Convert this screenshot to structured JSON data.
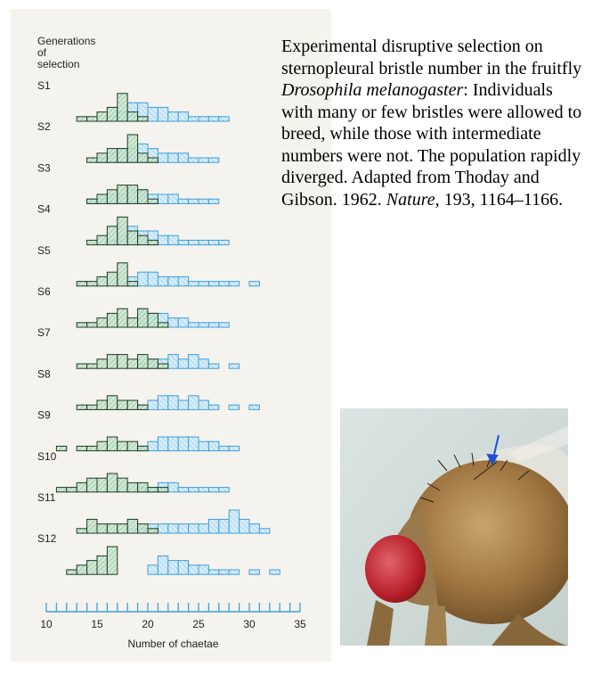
{
  "caption": {
    "part1": "Experimental disruptive selection on sternopleural bristle number in the fruitfly ",
    "species": "Drosophila melanogaster",
    "part2": ": Individuals with many or few bristles were allowed to breed, while those with intermediate numbers were not. The population rapidly diverged. Adapted from Thoday and Gibson. 1962. ",
    "journal": "Nature",
    "part3": ", 193, 1164–1166."
  },
  "chart_data": {
    "type": "histogram",
    "row_heading": [
      "Generations",
      "of",
      "selection"
    ],
    "xlabel": "Number of chaetae",
    "xlim": [
      10,
      35
    ],
    "xticks": [
      10,
      15,
      20,
      25,
      30,
      35
    ],
    "colors": {
      "low_line": "#1f3a26",
      "low_fill": "#c9e6cf",
      "high_line": "#3f9fd8",
      "high_fill": "#d7edf8",
      "axis": "#3f9fd8"
    },
    "series_note_low": "green hatched = low line",
    "rows": [
      {
        "label": "S1",
        "low": [
          [
            13,
            1
          ],
          [
            14,
            1
          ],
          [
            15,
            2
          ],
          [
            16,
            3
          ],
          [
            17,
            6
          ],
          [
            18,
            2
          ],
          [
            19,
            1
          ]
        ],
        "high": [
          [
            16,
            1
          ],
          [
            17,
            2
          ],
          [
            18,
            4
          ],
          [
            19,
            4
          ],
          [
            20,
            3
          ],
          [
            21,
            3
          ],
          [
            22,
            2
          ],
          [
            23,
            2
          ],
          [
            24,
            1
          ],
          [
            25,
            1
          ],
          [
            26,
            1
          ],
          [
            27,
            1
          ]
        ]
      },
      {
        "label": "S2",
        "low": [
          [
            14,
            1
          ],
          [
            15,
            2
          ],
          [
            16,
            3
          ],
          [
            17,
            3
          ],
          [
            18,
            6
          ],
          [
            19,
            2
          ],
          [
            20,
            1
          ]
        ],
        "high": [
          [
            15,
            1
          ],
          [
            16,
            2
          ],
          [
            17,
            3
          ],
          [
            18,
            3
          ],
          [
            19,
            4
          ],
          [
            20,
            3
          ],
          [
            21,
            2
          ],
          [
            22,
            2
          ],
          [
            23,
            2
          ],
          [
            24,
            1
          ],
          [
            25,
            1
          ],
          [
            26,
            1
          ]
        ]
      },
      {
        "label": "S3",
        "low": [
          [
            14,
            1
          ],
          [
            15,
            2
          ],
          [
            16,
            3
          ],
          [
            17,
            4
          ],
          [
            18,
            4
          ],
          [
            19,
            3
          ],
          [
            20,
            1
          ]
        ],
        "high": [
          [
            14,
            1
          ],
          [
            15,
            1
          ],
          [
            16,
            2
          ],
          [
            17,
            2
          ],
          [
            18,
            3
          ],
          [
            19,
            3
          ],
          [
            20,
            2
          ],
          [
            21,
            2
          ],
          [
            22,
            2
          ],
          [
            23,
            1
          ],
          [
            24,
            1
          ],
          [
            25,
            1
          ],
          [
            26,
            1
          ]
        ]
      },
      {
        "label": "S4",
        "low": [
          [
            14,
            1
          ],
          [
            15,
            2
          ],
          [
            16,
            4
          ],
          [
            17,
            6
          ],
          [
            18,
            3
          ],
          [
            19,
            2
          ],
          [
            20,
            1
          ]
        ],
        "high": [
          [
            16,
            1
          ],
          [
            17,
            2
          ],
          [
            18,
            4
          ],
          [
            19,
            3
          ],
          [
            20,
            3
          ],
          [
            21,
            2
          ],
          [
            22,
            2
          ],
          [
            23,
            1
          ],
          [
            24,
            1
          ],
          [
            25,
            1
          ],
          [
            26,
            1
          ],
          [
            27,
            1
          ]
        ]
      },
      {
        "label": "S5",
        "low": [
          [
            13,
            1
          ],
          [
            14,
            1
          ],
          [
            15,
            2
          ],
          [
            16,
            3
          ],
          [
            17,
            5
          ],
          [
            18,
            1
          ]
        ],
        "high": [
          [
            18,
            2
          ],
          [
            19,
            3
          ],
          [
            20,
            3
          ],
          [
            21,
            2
          ],
          [
            22,
            2
          ],
          [
            23,
            2
          ],
          [
            24,
            1
          ],
          [
            25,
            1
          ],
          [
            26,
            1
          ],
          [
            27,
            1
          ],
          [
            28,
            1
          ],
          [
            30,
            1
          ]
        ]
      },
      {
        "label": "S6",
        "low": [
          [
            13,
            1
          ],
          [
            14,
            1
          ],
          [
            15,
            2
          ],
          [
            16,
            3
          ],
          [
            17,
            4
          ],
          [
            18,
            2
          ],
          [
            19,
            4
          ],
          [
            20,
            3
          ],
          [
            21,
            1
          ]
        ],
        "high": [
          [
            19,
            4
          ],
          [
            20,
            3
          ],
          [
            21,
            3
          ],
          [
            22,
            2
          ],
          [
            23,
            2
          ],
          [
            24,
            1
          ],
          [
            25,
            1
          ],
          [
            26,
            1
          ],
          [
            27,
            1
          ]
        ]
      },
      {
        "label": "S7",
        "low": [
          [
            13,
            1
          ],
          [
            14,
            1
          ],
          [
            15,
            2
          ],
          [
            16,
            3
          ],
          [
            17,
            3
          ],
          [
            18,
            2
          ],
          [
            19,
            3
          ],
          [
            20,
            2
          ],
          [
            21,
            1
          ]
        ],
        "high": [
          [
            19,
            1
          ],
          [
            20,
            2
          ],
          [
            21,
            2
          ],
          [
            22,
            3
          ],
          [
            23,
            2
          ],
          [
            24,
            3
          ],
          [
            25,
            2
          ],
          [
            26,
            1
          ],
          [
            28,
            1
          ]
        ]
      },
      {
        "label": "S8",
        "low": [
          [
            13,
            1
          ],
          [
            14,
            1
          ],
          [
            15,
            2
          ],
          [
            16,
            3
          ],
          [
            17,
            2
          ],
          [
            18,
            2
          ],
          [
            19,
            1
          ]
        ],
        "high": [
          [
            19,
            1
          ],
          [
            20,
            2
          ],
          [
            21,
            3
          ],
          [
            22,
            3
          ],
          [
            23,
            2
          ],
          [
            24,
            3
          ],
          [
            25,
            2
          ],
          [
            26,
            1
          ],
          [
            28,
            1
          ],
          [
            30,
            1
          ]
        ]
      },
      {
        "label": "S9",
        "low": [
          [
            11,
            1
          ],
          [
            13,
            1
          ],
          [
            14,
            1
          ],
          [
            15,
            2
          ],
          [
            16,
            3
          ],
          [
            17,
            2
          ],
          [
            18,
            2
          ],
          [
            19,
            1
          ]
        ],
        "high": [
          [
            19,
            1
          ],
          [
            20,
            2
          ],
          [
            21,
            3
          ],
          [
            22,
            3
          ],
          [
            23,
            3
          ],
          [
            24,
            3
          ],
          [
            25,
            2
          ],
          [
            26,
            2
          ],
          [
            27,
            1
          ],
          [
            28,
            1
          ]
        ]
      },
      {
        "label": "S10",
        "low": [
          [
            11,
            1
          ],
          [
            12,
            1
          ],
          [
            13,
            2
          ],
          [
            14,
            3
          ],
          [
            15,
            3
          ],
          [
            16,
            4
          ],
          [
            17,
            3
          ],
          [
            18,
            2
          ],
          [
            19,
            2
          ],
          [
            20,
            1
          ],
          [
            21,
            1
          ]
        ],
        "high": [
          [
            19,
            1
          ],
          [
            20,
            1
          ],
          [
            21,
            2
          ],
          [
            22,
            2
          ],
          [
            23,
            1
          ],
          [
            24,
            1
          ],
          [
            25,
            1
          ],
          [
            26,
            1
          ],
          [
            27,
            1
          ]
        ]
      },
      {
        "label": "S11",
        "low": [
          [
            13,
            1
          ],
          [
            14,
            3
          ],
          [
            15,
            2
          ],
          [
            16,
            2
          ],
          [
            17,
            2
          ],
          [
            18,
            3
          ],
          [
            19,
            2
          ],
          [
            20,
            1
          ]
        ],
        "high": [
          [
            18,
            1
          ],
          [
            19,
            1
          ],
          [
            20,
            2
          ],
          [
            21,
            2
          ],
          [
            22,
            2
          ],
          [
            23,
            2
          ],
          [
            24,
            2
          ],
          [
            25,
            2
          ],
          [
            26,
            3
          ],
          [
            27,
            3
          ],
          [
            28,
            5
          ],
          [
            29,
            3
          ],
          [
            30,
            2
          ],
          [
            31,
            1
          ]
        ]
      },
      {
        "label": "S12",
        "low": [
          [
            12,
            1
          ],
          [
            13,
            2
          ],
          [
            14,
            3
          ],
          [
            15,
            4
          ],
          [
            16,
            6
          ]
        ],
        "high": [
          [
            20,
            2
          ],
          [
            21,
            4
          ],
          [
            22,
            3
          ],
          [
            23,
            3
          ],
          [
            24,
            2
          ],
          [
            25,
            2
          ],
          [
            26,
            1
          ],
          [
            27,
            1
          ],
          [
            28,
            1
          ],
          [
            30,
            1
          ],
          [
            32,
            1
          ]
        ]
      }
    ]
  }
}
